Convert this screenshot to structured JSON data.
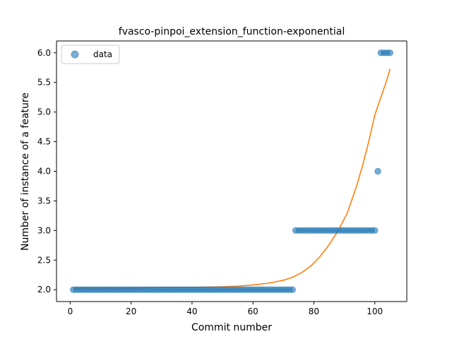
{
  "chart_data": {
    "type": "scatter",
    "title": "fvasco-pinpoi_extension_function-exponential",
    "xlabel": "Commit number",
    "ylabel": "Number of instance of a feature",
    "xlim": [
      -4.5,
      110.5
    ],
    "ylim": [
      1.8,
      6.2
    ],
    "xticks": [
      0,
      20,
      40,
      60,
      80,
      100
    ],
    "yticks": [
      2.0,
      2.5,
      3.0,
      3.5,
      4.0,
      4.5,
      5.0,
      5.5,
      6.0
    ],
    "grid": false,
    "legend_position": "upper-left",
    "colors": {
      "data": "#1f77b4",
      "fit": "#ff7f0e"
    },
    "series": [
      {
        "name": "data",
        "kind": "scatter",
        "x": [
          1,
          2,
          3,
          4,
          5,
          6,
          7,
          8,
          9,
          10,
          11,
          12,
          13,
          14,
          15,
          16,
          17,
          18,
          19,
          20,
          21,
          22,
          23,
          24,
          25,
          26,
          27,
          28,
          29,
          30,
          31,
          32,
          33,
          34,
          35,
          36,
          37,
          38,
          39,
          40,
          41,
          42,
          43,
          44,
          45,
          46,
          47,
          48,
          49,
          50,
          51,
          52,
          53,
          54,
          55,
          56,
          57,
          58,
          59,
          60,
          61,
          62,
          63,
          64,
          65,
          66,
          67,
          68,
          69,
          70,
          71,
          72,
          73,
          74,
          75,
          76,
          77,
          78,
          79,
          80,
          81,
          82,
          83,
          84,
          85,
          86,
          87,
          88,
          89,
          90,
          91,
          92,
          93,
          94,
          95,
          96,
          97,
          98,
          99,
          100,
          101,
          102,
          103,
          104,
          105
        ],
        "y": [
          2,
          2,
          2,
          2,
          2,
          2,
          2,
          2,
          2,
          2,
          2,
          2,
          2,
          2,
          2,
          2,
          2,
          2,
          2,
          2,
          2,
          2,
          2,
          2,
          2,
          2,
          2,
          2,
          2,
          2,
          2,
          2,
          2,
          2,
          2,
          2,
          2,
          2,
          2,
          2,
          2,
          2,
          2,
          2,
          2,
          2,
          2,
          2,
          2,
          2,
          2,
          2,
          2,
          2,
          2,
          2,
          2,
          2,
          2,
          2,
          2,
          2,
          2,
          2,
          2,
          2,
          2,
          2,
          2,
          2,
          2,
          2,
          2,
          3,
          3,
          3,
          3,
          3,
          3,
          3,
          3,
          3,
          3,
          3,
          3,
          3,
          3,
          3,
          3,
          3,
          3,
          3,
          3,
          3,
          3,
          3,
          3,
          3,
          3,
          3,
          4,
          6,
          6,
          6,
          6
        ]
      },
      {
        "name": "",
        "kind": "line",
        "x": [
          1,
          10,
          20,
          30,
          40,
          50,
          55,
          60,
          65,
          70,
          73,
          76,
          79,
          82,
          85,
          88,
          91,
          94,
          96,
          98,
          100,
          101,
          102,
          103,
          104,
          105
        ],
        "y": [
          2.03,
          2.03,
          2.03,
          2.04,
          2.04,
          2.05,
          2.06,
          2.08,
          2.11,
          2.16,
          2.21,
          2.29,
          2.4,
          2.56,
          2.76,
          3.0,
          3.3,
          3.75,
          4.1,
          4.5,
          4.95,
          5.1,
          5.25,
          5.4,
          5.55,
          5.73
        ]
      }
    ],
    "legend": [
      {
        "label": "data"
      }
    ]
  }
}
